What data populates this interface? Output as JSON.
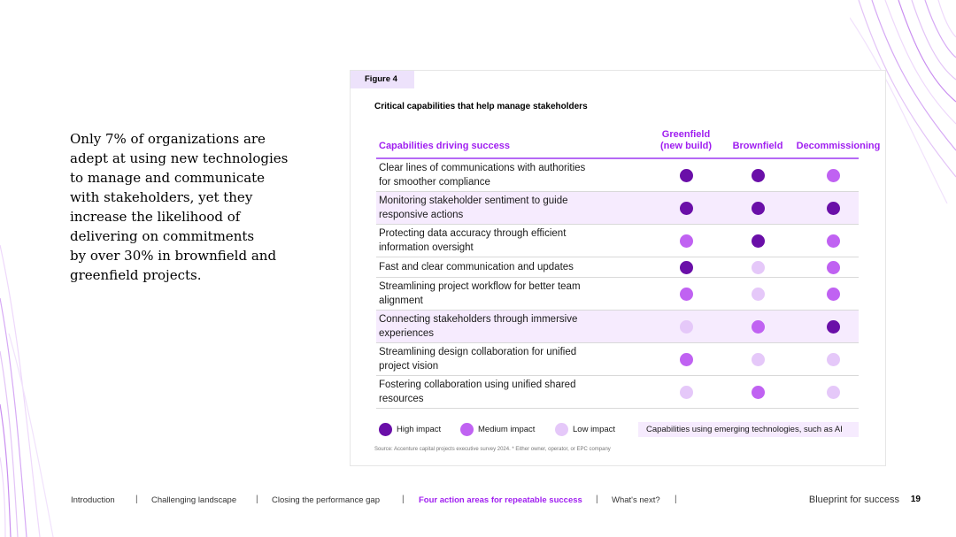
{
  "intro": {
    "lines": [
      "Only 7% of organizations are",
      "adept at using new technologies",
      "to manage and communicate",
      "with stakeholders, yet they",
      "increase the likelihood of",
      "delivering on commitments",
      "by over 30% in brownfield and",
      "greenfield projects."
    ]
  },
  "figure": {
    "tab": "Figure 4",
    "title": "Critical capabilities that help manage stakeholders",
    "headers": {
      "capabilities": "Capabilities driving success",
      "greenfield_line1": "Greenfield",
      "greenfield_line2": "(new build)",
      "brownfield": "Brownfield",
      "decommissioning": "Decommissioning"
    },
    "rows": [
      {
        "label_lines": [
          "Clear lines of communications with authorities",
          "for smoother compliance"
        ],
        "greenfield": "high",
        "brownfield": "high",
        "decommissioning": "medium",
        "emerging_tech": false
      },
      {
        "label_lines": [
          "Monitoring stakeholder sentiment to guide",
          "responsive actions"
        ],
        "greenfield": "high",
        "brownfield": "high",
        "decommissioning": "high",
        "emerging_tech": true
      },
      {
        "label_lines": [
          "Protecting data accuracy through efficient",
          "information oversight"
        ],
        "greenfield": "medium",
        "brownfield": "high",
        "decommissioning": "medium",
        "emerging_tech": false
      },
      {
        "label_lines": [
          "Fast and clear communication and updates"
        ],
        "greenfield": "high",
        "brownfield": "low",
        "decommissioning": "medium",
        "emerging_tech": false
      },
      {
        "label_lines": [
          "Streamlining project workflow for better team",
          "alignment"
        ],
        "greenfield": "medium",
        "brownfield": "low",
        "decommissioning": "medium",
        "emerging_tech": false
      },
      {
        "label_lines": [
          "Connecting stakeholders through immersive",
          "experiences"
        ],
        "greenfield": "low",
        "brownfield": "medium",
        "decommissioning": "high",
        "emerging_tech": true
      },
      {
        "label_lines": [
          "Streamlining design collaboration for unified",
          "project vision"
        ],
        "greenfield": "medium",
        "brownfield": "low",
        "decommissioning": "low",
        "emerging_tech": false
      },
      {
        "label_lines": [
          "Fostering collaboration using unified shared",
          "resources"
        ],
        "greenfield": "low",
        "brownfield": "medium",
        "decommissioning": "low",
        "emerging_tech": false
      }
    ],
    "legend": {
      "high": "High impact",
      "medium": "Medium impact",
      "low": "Low impact",
      "emerging": "Capabilities using emerging technologies, such as AI"
    },
    "source": "Source: Accenture capital projects executive survey 2024. * Either owner, operator, or EPC company"
  },
  "colors": {
    "high": "#6a0fa8",
    "medium": "#c062f2",
    "low": "#e5c8f9",
    "accent": "#a01ff0",
    "highlight": "#f6ebfe"
  },
  "footer": {
    "nav": [
      {
        "label": "Introduction",
        "active": false
      },
      {
        "label": "Challenging landscape",
        "active": false
      },
      {
        "label": "Closing the performance gap",
        "active": false
      },
      {
        "label": "Four action areas for repeatable success",
        "active": true
      },
      {
        "label": "What's next?",
        "active": false
      }
    ],
    "separator": "|",
    "doc_title": "Blueprint for success",
    "page_number": "19"
  }
}
